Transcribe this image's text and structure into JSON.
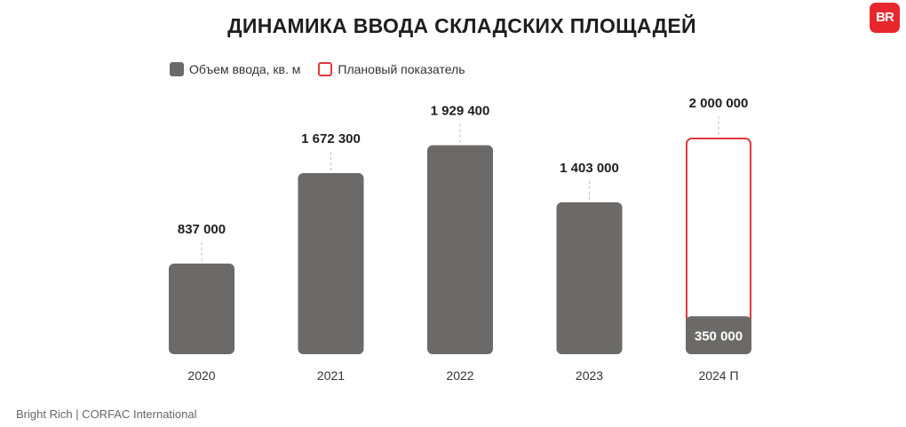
{
  "title": "ДИНАМИКА ВВОДА СКЛАДСКИХ ПЛОЩАДЕЙ",
  "logo_text": "BR",
  "footer": "Bright Rich | CORFAC International",
  "colors": {
    "bar": "#6b6a68",
    "plan_outline": "#e03a3e",
    "logo": "#e8262d"
  },
  "legend": [
    {
      "label": "Объем ввода, кв. м",
      "style": "filled"
    },
    {
      "label": "Плановый показатель",
      "style": "outline"
    }
  ],
  "chart_data": {
    "type": "bar",
    "categories": [
      "2020",
      "2021",
      "2022",
      "2023",
      "2024 П"
    ],
    "series": [
      {
        "name": "Объем ввода, кв. м",
        "values": [
          837000,
          1672300,
          1929400,
          1403000,
          350000
        ]
      },
      {
        "name": "Плановый показатель",
        "values": [
          null,
          null,
          null,
          null,
          2000000
        ]
      }
    ],
    "top_labels": [
      "837 000",
      "1 672 300",
      "1 929 400",
      "1 403 000",
      "2 000 000"
    ],
    "inner_labels": [
      "",
      "",
      "",
      "",
      "350 000"
    ],
    "title": "ДИНАМИКА ВВОДА СКЛАДСКИХ ПЛОЩАДЕЙ",
    "xlabel": "",
    "ylabel": "",
    "ylim": [
      0,
      2000000
    ],
    "grid": false,
    "legend_position": "top-left"
  }
}
